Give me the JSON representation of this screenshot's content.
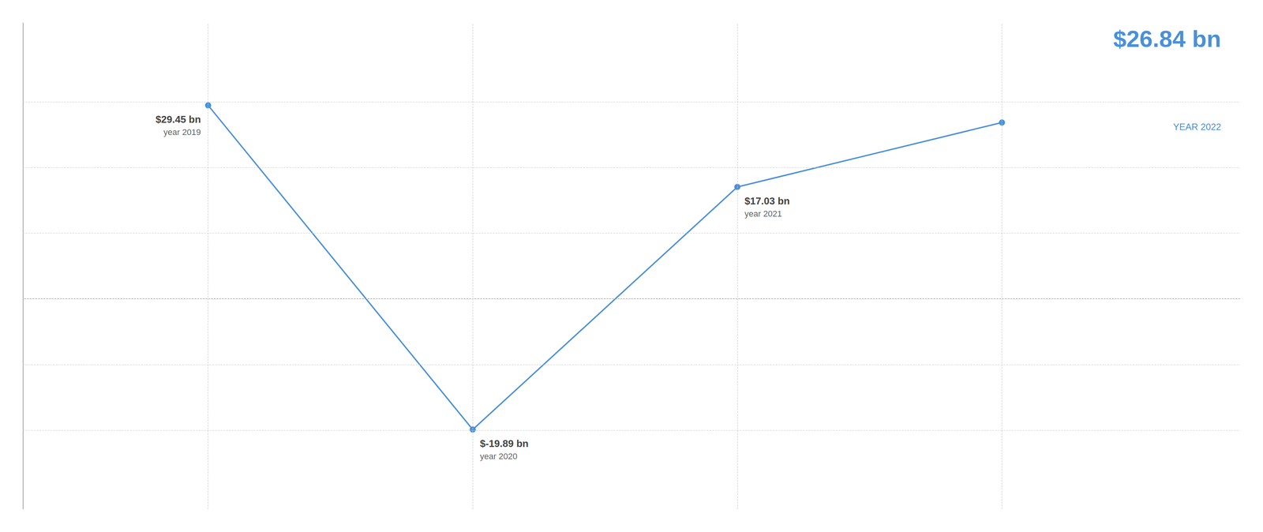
{
  "chart_data": {
    "type": "line",
    "x": [
      2019,
      2020,
      2021,
      2022
    ],
    "values": [
      29.45,
      -19.89,
      17.03,
      26.84
    ],
    "color": "#4a90d9",
    "marker": "circle",
    "xlim": [
      2018.3,
      2022.9
    ],
    "xticks": [
      2019,
      2020,
      2021,
      2022
    ],
    "ylim": [
      -32,
      42
    ],
    "yticks": [
      -20,
      -10,
      0,
      10,
      20,
      30
    ],
    "grid": true,
    "tick_labels": false,
    "annotations": [
      {
        "x": 2019,
        "y": 29.45,
        "label": "$29.45 bn",
        "sublabel": "year 2019"
      },
      {
        "x": 2020,
        "y": -19.89,
        "label": "$-19.89 bn",
        "sublabel": "year 2020"
      },
      {
        "x": 2021,
        "y": 17.03,
        "label": "$17.03 bn",
        "sublabel": "year 2021"
      }
    ],
    "highlight": {
      "label": "$26.84 bn",
      "sublabel": "YEAR 2022"
    }
  }
}
